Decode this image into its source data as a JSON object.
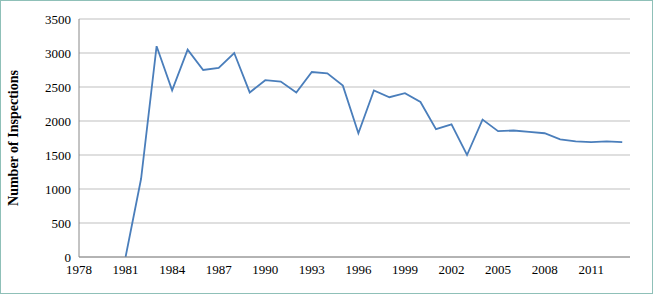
{
  "chart_data": {
    "type": "line",
    "y_label": "Number of Inspections",
    "x": [
      1981,
      1982,
      1983,
      1984,
      1985,
      1986,
      1987,
      1988,
      1989,
      1990,
      1991,
      1992,
      1993,
      1994,
      1995,
      1996,
      1997,
      1998,
      1999,
      2000,
      2001,
      2002,
      2003,
      2004,
      2005,
      2006,
      2007,
      2008,
      2009,
      2010,
      2011,
      2012,
      2013
    ],
    "values": [
      0,
      1150,
      3100,
      2450,
      3050,
      2750,
      2780,
      3000,
      2420,
      2600,
      2580,
      2420,
      2720,
      2700,
      2520,
      1820,
      2450,
      2350,
      2410,
      2280,
      1880,
      1950,
      1500,
      2020,
      1850,
      1860,
      1840,
      1820,
      1730,
      1700,
      1690,
      1700,
      1690
    ],
    "color": "#4a7ebb",
    "xlim": [
      1978,
      2013.5
    ],
    "xticks": [
      1978,
      1981,
      1984,
      1987,
      1990,
      1993,
      1996,
      1999,
      2002,
      2005,
      2008,
      2011
    ],
    "ylim": [
      0,
      3500
    ],
    "yticks": [
      0,
      500,
      1000,
      1500,
      2000,
      2500,
      3000,
      3500
    ],
    "grid": true
  }
}
